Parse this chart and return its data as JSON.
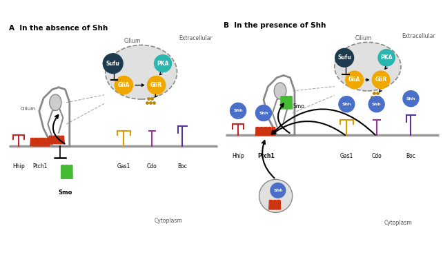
{
  "title_A": "A  In the absence of Shh",
  "title_B": "B  In the presence of Shh",
  "extracellular": "Extracellular",
  "cytoplasm": "Cytoplasm",
  "cilium": "Cilium",
  "labels": {
    "Sufu": "Sufu",
    "PKA": "PKA",
    "GliA": "GliA",
    "GliR": "GliR",
    "Smo": "Smo",
    "Hhip": "Hhip",
    "Ptch1": "Ptch1",
    "Gas1": "Gas1",
    "Cdo": "Cdo",
    "Boc": "Boc",
    "Shh": "Shh"
  },
  "colors": {
    "sufu": "#1e3a4e",
    "pka": "#2ab5ae",
    "glia": "#f0a800",
    "glir": "#f0a800",
    "shh_blue": "#4a6fc8",
    "smo_green": "#44bb33",
    "hhip_red": "#cc2222",
    "ptch1_red": "#cc3311",
    "gas1_orange": "#dd9900",
    "cdo_purple": "#993399",
    "boc_purple": "#553399",
    "cilium_bg": "#e0e0e0",
    "dots": "#bb8800",
    "cell_gray": "#888888",
    "tip_gray": "#cccccc"
  },
  "bg": "#ffffff"
}
